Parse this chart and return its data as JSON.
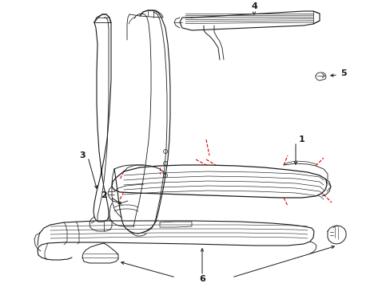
{
  "bg_color": "#ffffff",
  "line_color": "#1a1a1a",
  "red_color": "#dd0000",
  "figsize": [
    4.89,
    3.6
  ],
  "dpi": 100
}
